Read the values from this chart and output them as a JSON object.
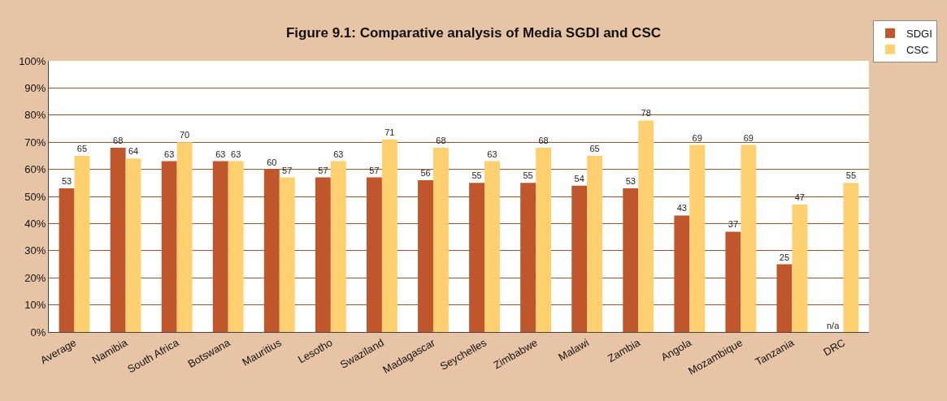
{
  "chart_data": {
    "type": "bar",
    "title": "Figure 9.1: Comparative analysis of Media SGDI and CSC",
    "categories": [
      "Average",
      "Namibia",
      "South Africa",
      "Botswana",
      "Mauritius",
      "Lesotho",
      "Swaziland",
      "Madagascar",
      "Seychelles",
      "Zimbabwe",
      "Malawi",
      "Zambia",
      "Angola",
      "Mozambique",
      "Tanzania",
      "DRC"
    ],
    "series": [
      {
        "name": "SDGI",
        "color": "#c0562b",
        "values": [
          53,
          68,
          63,
          63,
          60,
          57,
          57,
          56,
          55,
          55,
          54,
          53,
          43,
          37,
          25,
          null
        ],
        "value_labels": [
          "53",
          "68",
          "63",
          "63",
          "60",
          "57",
          "57",
          "56",
          "55",
          "55",
          "54",
          "53",
          "43",
          "37",
          "25",
          "n/a"
        ]
      },
      {
        "name": "CSC",
        "color": "#ffd070",
        "values": [
          65,
          64,
          70,
          63,
          57,
          63,
          71,
          68,
          63,
          68,
          65,
          78,
          69,
          69,
          47,
          55
        ],
        "value_labels": [
          "65",
          "64",
          "70",
          "63",
          "57",
          "63",
          "71",
          "68",
          "63",
          "68",
          "65",
          "78",
          "69",
          "69",
          "47",
          "55"
        ]
      }
    ],
    "ylim": [
      0,
      100
    ],
    "yticks": [
      {
        "value": 0,
        "label": "0%"
      },
      {
        "value": 10,
        "label": "10%"
      },
      {
        "value": 20,
        "label": "20%"
      },
      {
        "value": 30,
        "label": "30%"
      },
      {
        "value": 40,
        "label": "40%"
      },
      {
        "value": 50,
        "label": "50%"
      },
      {
        "value": 60,
        "label": "60%"
      },
      {
        "value": 70,
        "label": "70%"
      },
      {
        "value": 80,
        "label": "80%"
      },
      {
        "value": 90,
        "label": "90%"
      },
      {
        "value": 100,
        "label": "100%"
      }
    ],
    "grid": "y",
    "legend": "top right"
  }
}
